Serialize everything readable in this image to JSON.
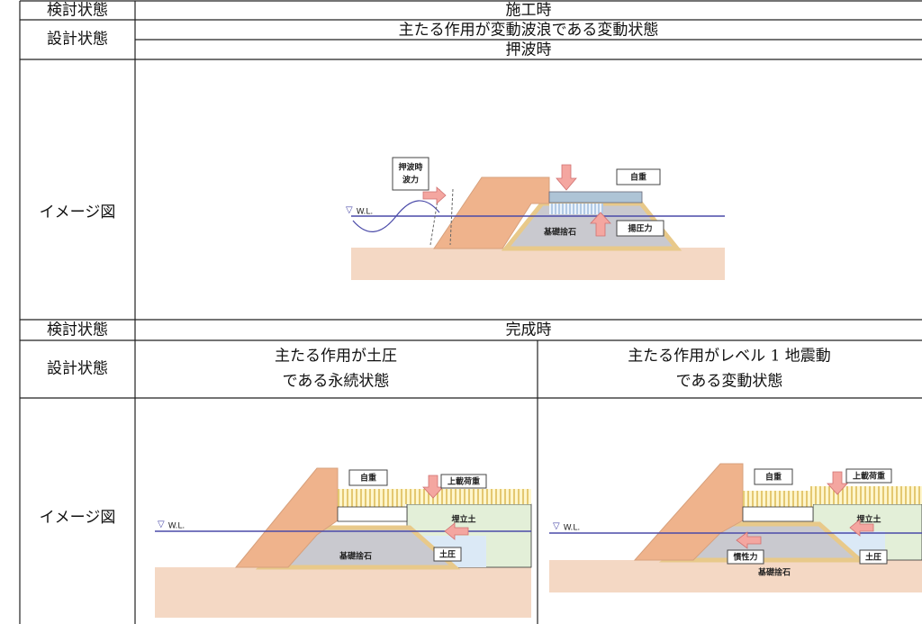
{
  "construction": {
    "label_state": "検討状態",
    "state": "施工時",
    "label_design": "設計状態",
    "design": "主たる作用が変動波浪である変動状態",
    "sub": "押波時",
    "label_image": "イメージ図",
    "diagram": {
      "wave_force": [
        "押波時",
        "波力"
      ],
      "self_weight": "自重",
      "uplift": "揚圧力",
      "rubble": "基礎捨石",
      "wl": "W.L."
    }
  },
  "completion": {
    "label_state": "検討状態",
    "state": "完成時",
    "label_design": "設計状態",
    "design_a": [
      "主たる作用が土圧",
      "である永続状態"
    ],
    "design_b": [
      "主たる作用がレベル 1 地震動",
      "である変動状態"
    ],
    "label_image": "イメージ図",
    "diagram_a": {
      "wl": "W.L.",
      "self_weight": "自重",
      "surcharge": "上載荷重",
      "fill": "埋立土",
      "earth_pressure": "土圧",
      "rubble": "基礎捨石"
    },
    "diagram_b": {
      "wl": "W.L.",
      "self_weight": "自重",
      "surcharge": "上載荷重",
      "fill": "埋立土",
      "earth_pressure": "土圧",
      "inertia": "慣性力",
      "rubble": "基礎捨石"
    }
  }
}
